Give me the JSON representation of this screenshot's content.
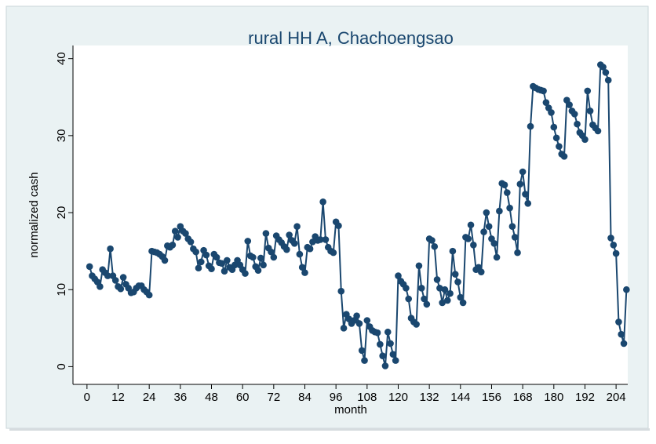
{
  "chart_data": {
    "type": "line",
    "title": "rural HH A, Chachoengsao",
    "xlabel": "month",
    "ylabel": "normalized cash",
    "x": [
      1,
      2,
      3,
      4,
      5,
      6,
      7,
      8,
      9,
      10,
      11,
      12,
      13,
      14,
      15,
      16,
      17,
      18,
      19,
      20,
      21,
      22,
      23,
      24,
      25,
      26,
      27,
      28,
      29,
      30,
      31,
      32,
      33,
      34,
      35,
      36,
      37,
      38,
      39,
      40,
      41,
      42,
      43,
      44,
      45,
      46,
      47,
      48,
      49,
      50,
      51,
      52,
      53,
      54,
      55,
      56,
      57,
      58,
      59,
      60,
      61,
      62,
      63,
      64,
      65,
      66,
      67,
      68,
      69,
      70,
      71,
      72,
      73,
      74,
      75,
      76,
      77,
      78,
      79,
      80,
      81,
      82,
      83,
      84,
      85,
      86,
      87,
      88,
      89,
      90,
      91,
      92,
      93,
      94,
      95,
      96,
      97,
      98,
      99,
      100,
      101,
      102,
      103,
      104,
      105,
      106,
      107,
      108,
      109,
      110,
      111,
      112,
      113,
      114,
      115,
      116,
      117,
      118,
      119,
      120,
      121,
      122,
      123,
      124,
      125,
      126,
      127,
      128,
      129,
      130,
      131,
      132,
      133,
      134,
      135,
      136,
      137,
      138,
      139,
      140,
      141,
      142,
      143,
      144,
      145,
      146,
      147,
      148,
      149,
      150,
      151,
      152,
      153,
      154,
      155,
      156,
      157,
      158,
      159,
      160,
      161,
      162,
      163,
      164,
      165,
      166,
      167,
      168,
      169,
      170,
      171,
      172,
      173,
      174,
      175,
      176,
      177,
      178,
      179,
      180,
      181,
      182,
      183,
      184,
      185,
      186,
      187,
      188,
      189,
      190,
      191,
      192,
      193,
      194,
      195,
      196,
      197,
      198,
      199,
      200,
      201,
      202,
      203,
      204,
      205,
      206,
      207,
      208
    ],
    "series": [
      {
        "name": "normalized cash",
        "color": "#1a476f",
        "values": [
          13.0,
          11.8,
          11.4,
          11.0,
          10.4,
          12.6,
          12.2,
          11.8,
          15.3,
          11.8,
          11.2,
          10.4,
          10.1,
          11.6,
          10.7,
          10.2,
          9.6,
          9.7,
          10.2,
          10.5,
          10.5,
          10.0,
          9.7,
          9.3,
          15.0,
          14.9,
          14.8,
          14.6,
          14.3,
          13.8,
          15.7,
          15.5,
          15.8,
          17.6,
          16.8,
          18.2,
          17.6,
          17.3,
          16.6,
          16.2,
          15.3,
          14.9,
          12.8,
          13.6,
          15.1,
          14.5,
          13.1,
          12.7,
          14.6,
          14.2,
          13.5,
          13.4,
          12.4,
          13.8,
          12.9,
          12.6,
          13.2,
          13.8,
          13.2,
          12.6,
          12.1,
          16.3,
          14.4,
          14.2,
          13.0,
          12.5,
          14.1,
          13.2,
          17.3,
          15.4,
          14.9,
          14.2,
          17.0,
          16.5,
          16.1,
          15.6,
          15.2,
          17.1,
          16.4,
          16.0,
          18.2,
          14.6,
          12.9,
          12.2,
          15.5,
          15.3,
          16.2,
          16.9,
          16.4,
          16.5,
          21.4,
          16.5,
          15.5,
          15.0,
          14.8,
          18.8,
          18.3,
          9.8,
          5.0,
          6.8,
          6.2,
          5.6,
          6.0,
          6.6,
          5.6,
          2.1,
          0.8,
          6.0,
          5.2,
          4.7,
          4.5,
          4.4,
          2.9,
          1.4,
          0.1,
          4.5,
          3.0,
          1.6,
          0.8,
          11.8,
          11.1,
          10.7,
          10.2,
          8.8,
          6.3,
          5.8,
          5.5,
          13.1,
          10.2,
          8.8,
          8.1,
          16.6,
          16.4,
          15.6,
          11.3,
          10.2,
          8.3,
          10.0,
          8.6,
          9.5,
          15.0,
          12.0,
          11.0,
          9.0,
          8.3,
          16.8,
          16.6,
          18.4,
          15.8,
          12.6,
          12.9,
          12.3,
          17.5,
          20.0,
          18.2,
          16.6,
          16.0,
          14.2,
          20.2,
          23.8,
          23.6,
          22.6,
          20.6,
          18.2,
          16.8,
          14.8,
          23.7,
          25.3,
          22.4,
          21.2,
          31.2,
          36.4,
          36.2,
          36.0,
          35.9,
          35.8,
          34.3,
          33.6,
          33.0,
          31.1,
          29.7,
          28.6,
          27.6,
          27.3,
          34.6,
          34.0,
          33.2,
          32.8,
          31.5,
          30.4,
          30.0,
          29.5,
          35.8,
          33.2,
          31.4,
          31.0,
          30.6,
          39.2,
          38.9,
          38.2,
          37.2,
          16.7,
          15.8,
          14.7,
          5.8,
          4.2,
          3.0,
          10.0
        ]
      }
    ],
    "xlim": [
      -5.4,
      208.5
    ],
    "xticks": [
      0,
      12,
      24,
      36,
      48,
      60,
      72,
      84,
      96,
      108,
      120,
      132,
      144,
      156,
      168,
      180,
      192,
      204
    ],
    "ylim": [
      -2.3,
      41.7
    ],
    "yticks": [
      0,
      10,
      20,
      30,
      40
    ],
    "grid": false,
    "markers": true
  }
}
